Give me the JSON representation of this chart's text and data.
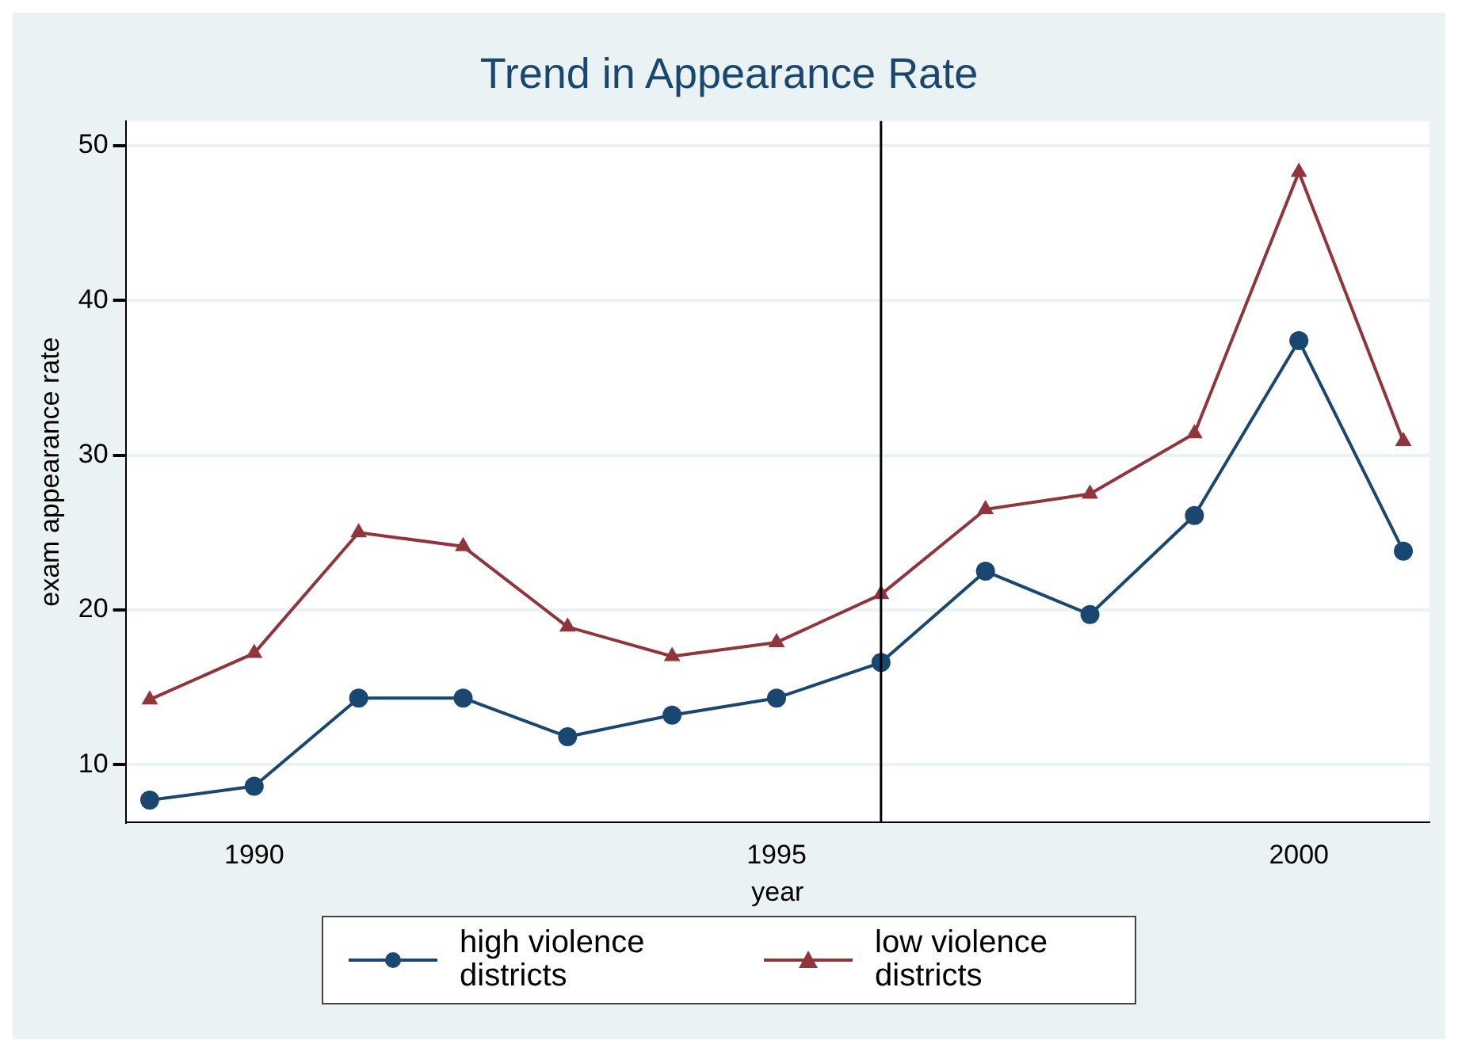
{
  "chart_data": {
    "type": "line",
    "title": "Trend in Appearance Rate",
    "xlabel": "year",
    "ylabel": "exam appearance rate",
    "x": [
      1989,
      1990,
      1991,
      1992,
      1993,
      1994,
      1995,
      1996,
      1997,
      1998,
      1999,
      2000,
      2001
    ],
    "series": [
      {
        "name": "high violence districts",
        "color": "#1a476f",
        "marker": "circle",
        "values": [
          7.7,
          8.6,
          14.3,
          14.3,
          11.8,
          13.2,
          14.3,
          16.6,
          22.5,
          19.7,
          26.1,
          37.4,
          23.8
        ]
      },
      {
        "name": "low violence districts",
        "color": "#90353b",
        "marker": "triangle",
        "values": [
          14.2,
          17.2,
          25.0,
          24.1,
          18.9,
          17.0,
          17.9,
          21.0,
          26.5,
          27.5,
          31.4,
          48.3,
          30.9
        ]
      }
    ],
    "xlim": [
      1988.77,
      2001.25
    ],
    "xticks": [
      1990,
      1995,
      2000
    ],
    "ylim": [
      6.25,
      51.6
    ],
    "yticks": [
      10,
      20,
      30,
      40,
      50
    ],
    "ref_lines": [
      {
        "axis": "x",
        "value": 1996,
        "color": "#000000"
      }
    ],
    "grid": "y",
    "legend": "bottom",
    "line_style": "solid"
  }
}
